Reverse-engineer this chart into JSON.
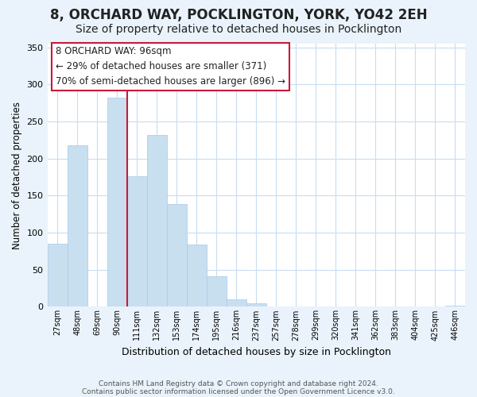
{
  "title": "8, ORCHARD WAY, POCKLINGTON, YORK, YO42 2EH",
  "subtitle": "Size of property relative to detached houses in Pocklington",
  "xlabel": "Distribution of detached houses by size in Pocklington",
  "ylabel": "Number of detached properties",
  "bar_labels": [
    "27sqm",
    "48sqm",
    "69sqm",
    "90sqm",
    "111sqm",
    "132sqm",
    "153sqm",
    "174sqm",
    "195sqm",
    "216sqm",
    "237sqm",
    "257sqm",
    "278sqm",
    "299sqm",
    "320sqm",
    "341sqm",
    "362sqm",
    "383sqm",
    "404sqm",
    "425sqm",
    "446sqm"
  ],
  "bar_values": [
    85,
    218,
    0,
    282,
    176,
    232,
    139,
    84,
    41,
    10,
    5,
    0,
    0,
    0,
    0,
    0,
    0,
    0,
    0,
    0,
    1
  ],
  "bar_color": "#c8dff0",
  "bar_edgecolor": "#a8c8e8",
  "vline_color": "#c8193c",
  "vline_bar_index": 3,
  "annotation_title": "8 ORCHARD WAY: 96sqm",
  "annotation_line1": "← 29% of detached houses are smaller (371)",
  "annotation_line2": "70% of semi-detached houses are larger (896) →",
  "annotation_box_facecolor": "#ffffff",
  "annotation_border_color": "#c8193c",
  "ylim": [
    0,
    355
  ],
  "yticks": [
    0,
    50,
    100,
    150,
    200,
    250,
    300,
    350
  ],
  "footer1": "Contains HM Land Registry data © Crown copyright and database right 2024.",
  "footer2": "Contains public sector information licensed under the Open Government Licence v3.0.",
  "bg_color": "#eaf3fb",
  "plot_bg_color": "#ffffff",
  "grid_color": "#c8ddf0",
  "title_fontsize": 12,
  "subtitle_fontsize": 10
}
